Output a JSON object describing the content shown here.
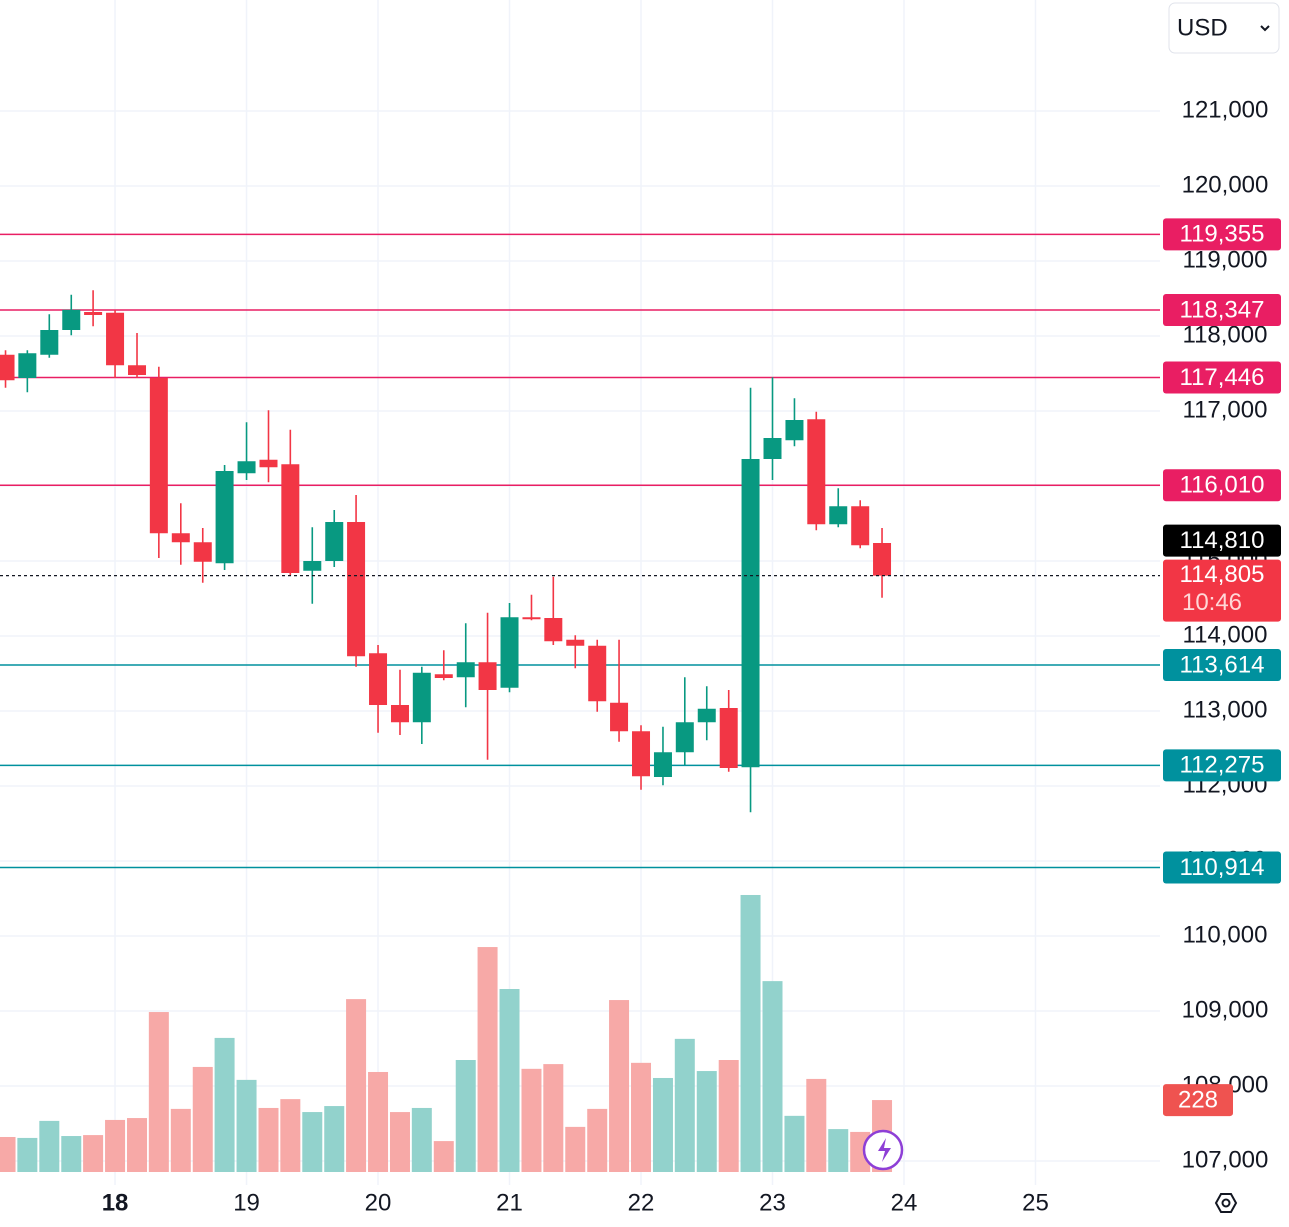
{
  "chart_data": {
    "type": "candlestick",
    "currency": "USD",
    "up_color": "#089981",
    "down_color": "#f23645",
    "x": [
      17.167,
      17.333,
      17.5,
      17.667,
      17.833,
      18,
      18.167,
      18.333,
      18.5,
      18.667,
      18.833,
      19,
      19.167,
      19.333,
      19.5,
      19.667,
      19.833,
      20,
      20.167,
      20.333,
      20.5,
      20.667,
      20.833,
      21,
      21.167,
      21.333,
      21.5,
      21.667,
      21.833,
      22,
      22.167,
      22.333,
      22.5,
      22.667,
      22.833,
      23,
      23.167,
      23.333,
      23.5,
      23.667,
      23.833
    ],
    "open": [
      117750,
      117440,
      117750,
      118080,
      118320,
      118310,
      117610,
      117440,
      115370,
      115250,
      114970,
      116170,
      116350,
      116290,
      114870,
      115000,
      115520,
      113770,
      113080,
      112850,
      113490,
      113450,
      113650,
      113310,
      114250,
      114240,
      113950,
      113870,
      113110,
      112730,
      112120,
      112450,
      112850,
      113040,
      112250,
      116360,
      116610,
      116890,
      115490,
      115730,
      115240
    ],
    "high": [
      117810,
      117810,
      118290,
      118550,
      118610,
      118350,
      118040,
      117590,
      115770,
      115440,
      116280,
      116850,
      117010,
      116750,
      115450,
      115680,
      115880,
      113880,
      113550,
      113590,
      113810,
      114170,
      114310,
      114440,
      114550,
      114790,
      114010,
      113950,
      113950,
      112810,
      112790,
      113450,
      113330,
      113280,
      117310,
      117450,
      117170,
      116990,
      115970,
      115810,
      115440
    ],
    "low": [
      117310,
      117250,
      117710,
      118010,
      118130,
      117440,
      117440,
      115040,
      114950,
      114710,
      114880,
      116080,
      116050,
      114810,
      114430,
      114920,
      113590,
      112710,
      112680,
      112560,
      113410,
      113050,
      112350,
      113250,
      114210,
      113880,
      113570,
      112990,
      112590,
      111950,
      112010,
      112280,
      112610,
      112190,
      111650,
      116080,
      116530,
      115410,
      115450,
      115170,
      114510
    ],
    "close": [
      117410,
      117770,
      118080,
      118350,
      118280,
      117610,
      117480,
      115370,
      115250,
      114990,
      116200,
      116330,
      116250,
      114840,
      115000,
      115520,
      113730,
      113080,
      112850,
      113510,
      113440,
      113650,
      113280,
      114250,
      114230,
      113930,
      113870,
      113130,
      112730,
      112130,
      112450,
      112850,
      113030,
      112240,
      116360,
      116640,
      116880,
      115490,
      115730,
      115210,
      114805
    ],
    "volume": {
      "values": [
        111,
        108,
        162,
        114,
        117,
        165,
        171,
        507,
        200,
        333,
        425,
        292,
        203,
        231,
        190,
        209,
        548,
        317,
        190,
        203,
        98,
        355,
        713,
        580,
        327,
        342,
        143,
        200,
        545,
        346,
        298,
        422,
        320,
        355,
        878,
        605,
        178,
        295,
        136,
        127,
        228
      ],
      "ylim": [
        0,
        1000
      ],
      "up_color": "#92d2cc",
      "down_color": "#f7a9a7",
      "badge_color": "#ef5350"
    },
    "xlim": [
      17.125,
      25.947
    ],
    "xticks": [
      18,
      19,
      20,
      21,
      22,
      23,
      24,
      25
    ],
    "ylim": [
      106680,
      122480
    ],
    "yticks": [
      {
        "value": 107000,
        "label": "107,000"
      },
      {
        "value": 108000,
        "label": "108,000"
      },
      {
        "value": 109000,
        "label": "109,000"
      },
      {
        "value": 110000,
        "label": "110,000"
      },
      {
        "value": 111000,
        "label": "111,000"
      },
      {
        "value": 112000,
        "label": "112,000"
      },
      {
        "value": 113000,
        "label": "113,000"
      },
      {
        "value": 114000,
        "label": "114,000"
      },
      {
        "value": 115000,
        "label": "115,000"
      },
      {
        "value": 116000,
        "label": "116,000"
      },
      {
        "value": 117000,
        "label": "117,000"
      },
      {
        "value": 118000,
        "label": "118,000"
      },
      {
        "value": 119000,
        "label": "119,000"
      },
      {
        "value": 120000,
        "label": "120,000"
      },
      {
        "value": 121000,
        "label": "121,000"
      }
    ],
    "grid": true,
    "levels": [
      {
        "value": 119355,
        "label": "119,355",
        "color": "#e91e63"
      },
      {
        "value": 118347,
        "label": "118,347",
        "color": "#e91e63"
      },
      {
        "value": 117446,
        "label": "117,446",
        "color": "#e91e63"
      },
      {
        "value": 116010,
        "label": "116,010",
        "color": "#e91e63"
      },
      {
        "value": 113614,
        "label": "113,614",
        "color": "#00919e"
      },
      {
        "value": 112275,
        "label": "112,275",
        "color": "#00919e"
      },
      {
        "value": 110914,
        "label": "110,914",
        "color": "#00919e"
      }
    ],
    "marker_price": {
      "value": 114810,
      "label": "114,810",
      "color": "#000000"
    },
    "last_price": {
      "value": 114805,
      "label": "114,805",
      "countdown": "10:46",
      "color": "#f23645"
    }
  }
}
